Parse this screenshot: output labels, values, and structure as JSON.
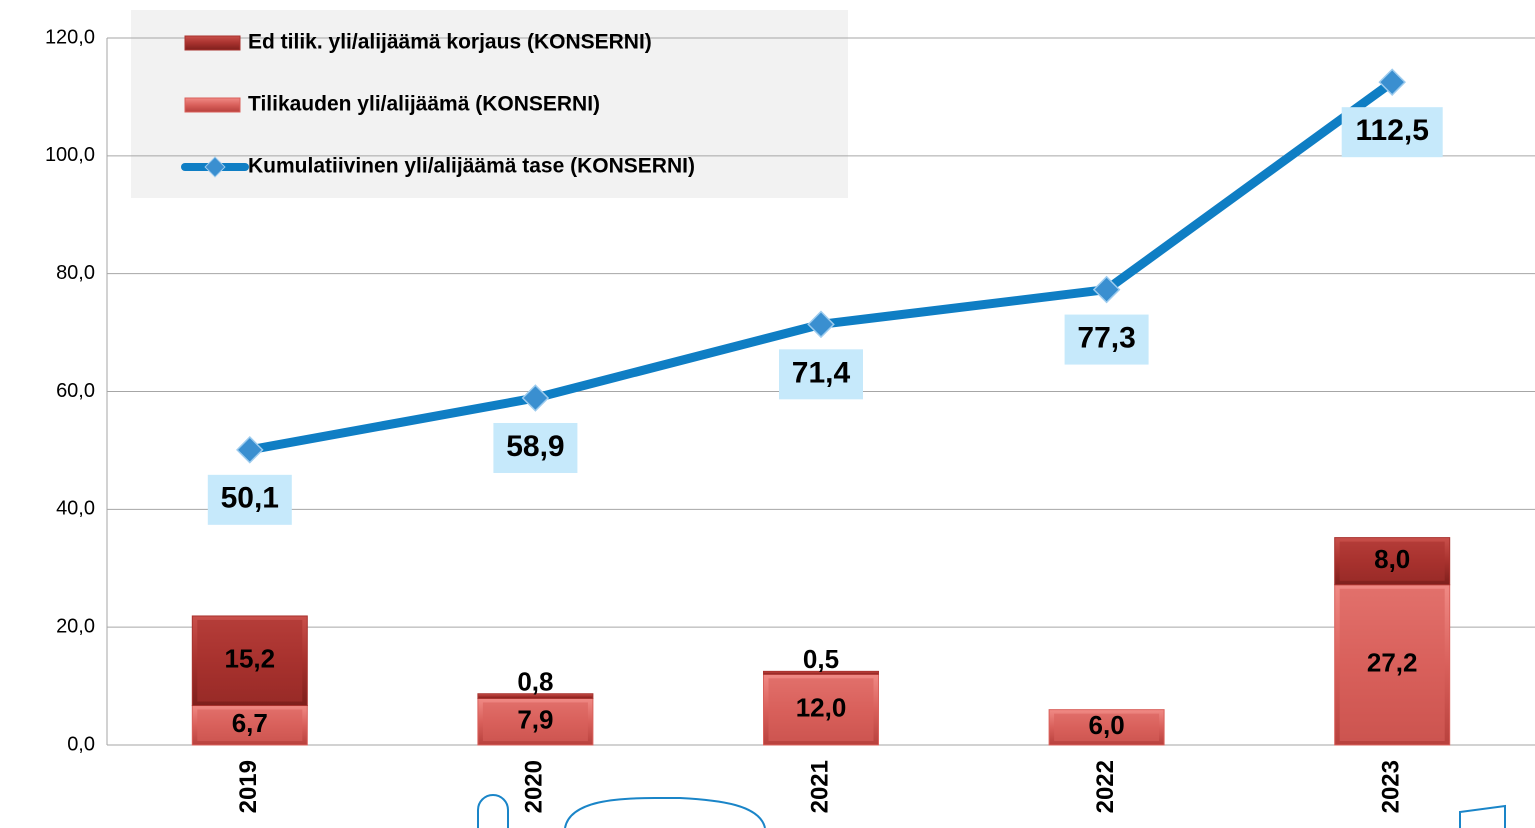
{
  "chart_data": {
    "type": "bar-line",
    "categories": [
      "2019",
      "2020",
      "2021",
      "2022",
      "2023"
    ],
    "series": [
      {
        "name": "Tilikauden yli/alijäämä (KONSERNI)",
        "type": "bar",
        "color": "#d9605b",
        "values": [
          6.7,
          7.9,
          12.0,
          6.0,
          27.2
        ],
        "value_labels": [
          "6,7",
          "7,9",
          "12,0",
          "6,0",
          "27,2"
        ]
      },
      {
        "name": "Ed tilik. yli/alijäämä korjaus (KONSERNI)",
        "type": "bar",
        "color": "#a8322e",
        "values": [
          15.2,
          0.8,
          0.5,
          null,
          8.0
        ],
        "value_labels": [
          "15,2",
          "0,8",
          "0,5",
          null,
          "8,0"
        ]
      },
      {
        "name": "Kumulatiivinen yli/alijäämä tase (KONSERNI)",
        "type": "line",
        "color": "#0f7ec4",
        "values": [
          50.1,
          58.9,
          71.4,
          77.3,
          112.5
        ],
        "value_labels": [
          "50,1",
          "58,9",
          "71,4",
          "77,3",
          "112,5"
        ]
      }
    ],
    "legend_order": [
      1,
      0,
      2
    ],
    "ylim": [
      0,
      120
    ],
    "yticks": [
      {
        "value": 0,
        "label": "0,0"
      },
      {
        "value": 20,
        "label": "20,0"
      },
      {
        "value": 40,
        "label": "40,0"
      },
      {
        "value": 60,
        "label": "60,0"
      },
      {
        "value": 80,
        "label": "80,0"
      },
      {
        "value": 100,
        "label": "100,0"
      },
      {
        "value": 120,
        "label": "120,0"
      }
    ],
    "grid": true
  }
}
